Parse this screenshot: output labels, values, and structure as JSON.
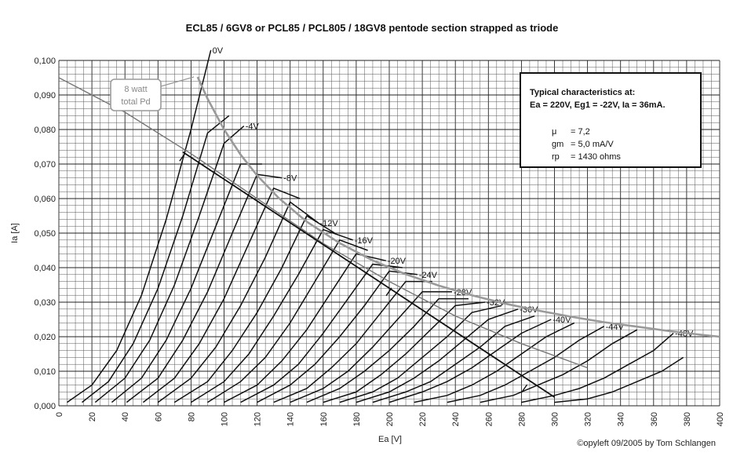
{
  "chart_data": {
    "type": "line",
    "title": "ECL85 / 6GV8 or PCL85 /  PCL805 / 18GV8 pentode section strapped as triode",
    "xlabel": "Ea [V]",
    "ylabel": "Ia [A]",
    "xlim": [
      0,
      400
    ],
    "ylim": [
      0,
      0.1
    ],
    "x_ticks": [
      "0",
      "20",
      "40",
      "60",
      "80",
      "100",
      "120",
      "140",
      "160",
      "180",
      "200",
      "220",
      "240",
      "260",
      "280",
      "300",
      "320",
      "340",
      "360",
      "380",
      "400"
    ],
    "y_ticks": [
      "0,000",
      "0,010",
      "0,020",
      "0,030",
      "0,040",
      "0,050",
      "0,060",
      "0,070",
      "0,080",
      "0,090",
      "0,100"
    ],
    "grid": true,
    "colors": {
      "curve": "#111111",
      "dissipation": "#9a9a9a",
      "load_line": "#111111",
      "grid": "#333333"
    },
    "curves": [
      {
        "label": "0V",
        "eg": 0,
        "points": [
          [
            5,
            0.001
          ],
          [
            20,
            0.006
          ],
          [
            35,
            0.016
          ],
          [
            50,
            0.032
          ],
          [
            65,
            0.054
          ],
          [
            80,
            0.08
          ],
          [
            92,
            0.103
          ]
        ]
      },
      {
        "label": "",
        "eg": -2,
        "points": [
          [
            14,
            0.001
          ],
          [
            30,
            0.007
          ],
          [
            45,
            0.018
          ],
          [
            60,
            0.034
          ],
          [
            75,
            0.055
          ],
          [
            90,
            0.079
          ],
          [
            103,
            0.084
          ]
        ]
      },
      {
        "label": "-4V",
        "eg": -4,
        "points": [
          [
            22,
            0.001
          ],
          [
            40,
            0.008
          ],
          [
            55,
            0.019
          ],
          [
            70,
            0.035
          ],
          [
            85,
            0.055
          ],
          [
            100,
            0.076
          ],
          [
            112,
            0.081
          ]
        ]
      },
      {
        "label": "",
        "eg": -6,
        "points": [
          [
            32,
            0.001
          ],
          [
            50,
            0.008
          ],
          [
            65,
            0.019
          ],
          [
            80,
            0.034
          ],
          [
            95,
            0.052
          ],
          [
            110,
            0.07
          ],
          [
            123,
            0.07
          ]
        ]
      },
      {
        "label": "-8V",
        "eg": -8,
        "points": [
          [
            41,
            0.001
          ],
          [
            60,
            0.008
          ],
          [
            75,
            0.019
          ],
          [
            90,
            0.033
          ],
          [
            105,
            0.05
          ],
          [
            120,
            0.067
          ],
          [
            135,
            0.066
          ]
        ]
      },
      {
        "label": "",
        "eg": -10,
        "points": [
          [
            51,
            0.001
          ],
          [
            70,
            0.008
          ],
          [
            85,
            0.018
          ],
          [
            100,
            0.031
          ],
          [
            115,
            0.047
          ],
          [
            130,
            0.063
          ],
          [
            146,
            0.06
          ]
        ]
      },
      {
        "label": "-12V",
        "eg": -12,
        "points": [
          [
            60,
            0.001
          ],
          [
            80,
            0.008
          ],
          [
            95,
            0.017
          ],
          [
            110,
            0.029
          ],
          [
            125,
            0.043
          ],
          [
            140,
            0.059
          ],
          [
            157,
            0.053
          ]
        ]
      },
      {
        "label": "",
        "eg": -14,
        "points": [
          [
            70,
            0.001
          ],
          [
            90,
            0.007
          ],
          [
            105,
            0.016
          ],
          [
            120,
            0.027
          ],
          [
            135,
            0.04
          ],
          [
            150,
            0.055
          ],
          [
            167,
            0.05
          ]
        ]
      },
      {
        "label": "-16V",
        "eg": -16,
        "points": [
          [
            80,
            0.001
          ],
          [
            100,
            0.007
          ],
          [
            115,
            0.015
          ],
          [
            130,
            0.026
          ],
          [
            145,
            0.038
          ],
          [
            160,
            0.051
          ],
          [
            178,
            0.048
          ]
        ]
      },
      {
        "label": "",
        "eg": -18,
        "points": [
          [
            90,
            0.001
          ],
          [
            110,
            0.007
          ],
          [
            125,
            0.014
          ],
          [
            140,
            0.024
          ],
          [
            155,
            0.036
          ],
          [
            170,
            0.048
          ],
          [
            187,
            0.045
          ]
        ]
      },
      {
        "label": "-20V",
        "eg": -20,
        "points": [
          [
            100,
            0.001
          ],
          [
            120,
            0.006
          ],
          [
            135,
            0.013
          ],
          [
            150,
            0.022
          ],
          [
            165,
            0.033
          ],
          [
            180,
            0.044
          ],
          [
            198,
            0.042
          ]
        ]
      },
      {
        "label": "",
        "eg": -22,
        "points": [
          [
            110,
            0.001
          ],
          [
            130,
            0.006
          ],
          [
            145,
            0.012
          ],
          [
            160,
            0.021
          ],
          [
            175,
            0.031
          ],
          [
            190,
            0.041
          ],
          [
            208,
            0.04
          ]
        ]
      },
      {
        "label": "-24V",
        "eg": -24,
        "points": [
          [
            120,
            0.001
          ],
          [
            140,
            0.006
          ],
          [
            155,
            0.012
          ],
          [
            170,
            0.02
          ],
          [
            185,
            0.029
          ],
          [
            200,
            0.039
          ],
          [
            217,
            0.038
          ]
        ]
      },
      {
        "label": "",
        "eg": -26,
        "points": [
          [
            130,
            0.001
          ],
          [
            150,
            0.005
          ],
          [
            165,
            0.011
          ],
          [
            180,
            0.018
          ],
          [
            195,
            0.027
          ],
          [
            210,
            0.036
          ],
          [
            226,
            0.036
          ]
        ]
      },
      {
        "label": "-28V",
        "eg": -28,
        "points": [
          [
            140,
            0.001
          ],
          [
            160,
            0.005
          ],
          [
            175,
            0.01
          ],
          [
            190,
            0.017
          ],
          [
            205,
            0.025
          ],
          [
            220,
            0.033
          ],
          [
            238,
            0.033
          ]
        ]
      },
      {
        "label": "",
        "eg": -30,
        "points": [
          [
            150,
            0.001
          ],
          [
            170,
            0.005
          ],
          [
            185,
            0.01
          ],
          [
            200,
            0.016
          ],
          [
            215,
            0.023
          ],
          [
            230,
            0.031
          ],
          [
            248,
            0.031
          ]
        ]
      },
      {
        "label": "-32V",
        "eg": -32,
        "points": [
          [
            160,
            0.001
          ],
          [
            180,
            0.004
          ],
          [
            195,
            0.009
          ],
          [
            210,
            0.015
          ],
          [
            225,
            0.022
          ],
          [
            240,
            0.029
          ],
          [
            258,
            0.03
          ]
        ]
      },
      {
        "label": "",
        "eg": -34,
        "points": [
          [
            170,
            0.001
          ],
          [
            190,
            0.004
          ],
          [
            205,
            0.008
          ],
          [
            220,
            0.014
          ],
          [
            235,
            0.02
          ],
          [
            250,
            0.027
          ],
          [
            268,
            0.029
          ]
        ]
      },
      {
        "label": "-36V",
        "eg": -36,
        "points": [
          [
            180,
            0.001
          ],
          [
            200,
            0.004
          ],
          [
            215,
            0.008
          ],
          [
            230,
            0.013
          ],
          [
            245,
            0.019
          ],
          [
            260,
            0.025
          ],
          [
            278,
            0.028
          ]
        ]
      },
      {
        "label": "",
        "eg": -38,
        "points": [
          [
            190,
            0.001
          ],
          [
            210,
            0.004
          ],
          [
            225,
            0.007
          ],
          [
            240,
            0.012
          ],
          [
            255,
            0.017
          ],
          [
            270,
            0.023
          ],
          [
            288,
            0.026
          ]
        ]
      },
      {
        "label": "-40V",
        "eg": -40,
        "points": [
          [
            200,
            0.001
          ],
          [
            220,
            0.004
          ],
          [
            235,
            0.007
          ],
          [
            250,
            0.011
          ],
          [
            265,
            0.016
          ],
          [
            280,
            0.021
          ],
          [
            298,
            0.025
          ]
        ]
      },
      {
        "label": "",
        "eg": -42,
        "points": [
          [
            215,
            0.001
          ],
          [
            235,
            0.003
          ],
          [
            250,
            0.006
          ],
          [
            265,
            0.01
          ],
          [
            280,
            0.015
          ],
          [
            295,
            0.02
          ],
          [
            312,
            0.024
          ]
        ]
      },
      {
        "label": "-44V",
        "eg": -44,
        "points": [
          [
            235,
            0.001
          ],
          [
            255,
            0.003
          ],
          [
            270,
            0.006
          ],
          [
            285,
            0.01
          ],
          [
            300,
            0.014
          ],
          [
            315,
            0.019
          ],
          [
            330,
            0.023
          ]
        ]
      },
      {
        "label": "",
        "eg": -46,
        "points": [
          [
            255,
            0.001
          ],
          [
            275,
            0.003
          ],
          [
            290,
            0.006
          ],
          [
            305,
            0.009
          ],
          [
            320,
            0.013
          ],
          [
            335,
            0.018
          ],
          [
            350,
            0.022
          ]
        ]
      },
      {
        "label": "-48V",
        "eg": -48,
        "points": [
          [
            280,
            0.001
          ],
          [
            300,
            0.003
          ],
          [
            315,
            0.005
          ],
          [
            330,
            0.008
          ],
          [
            345,
            0.012
          ],
          [
            360,
            0.016
          ],
          [
            372,
            0.021
          ]
        ]
      },
      {
        "label": "",
        "eg": -50,
        "points": [
          [
            300,
            0.001
          ],
          [
            320,
            0.002
          ],
          [
            335,
            0.004
          ],
          [
            350,
            0.007
          ],
          [
            365,
            0.01
          ],
          [
            378,
            0.014
          ]
        ]
      }
    ],
    "dissipation_curve": {
      "watts": 8,
      "points": [
        [
          84,
          0.0952
        ],
        [
          90,
          0.0889
        ],
        [
          100,
          0.08
        ],
        [
          110,
          0.0727
        ],
        [
          120,
          0.0667
        ],
        [
          133,
          0.0602
        ],
        [
          150,
          0.0533
        ],
        [
          170,
          0.0471
        ],
        [
          190,
          0.0421
        ],
        [
          210,
          0.0381
        ],
        [
          230,
          0.0348
        ],
        [
          250,
          0.032
        ],
        [
          270,
          0.0296
        ],
        [
          290,
          0.0276
        ],
        [
          310,
          0.0258
        ],
        [
          330,
          0.0242
        ],
        [
          350,
          0.0229
        ],
        [
          370,
          0.0216
        ],
        [
          390,
          0.0205
        ],
        [
          400,
          0.02
        ]
      ]
    },
    "load_line": {
      "points": [
        [
          75,
          0.0735
        ],
        [
          300,
          0.0025
        ]
      ],
      "ticks": [
        [
          75,
          0.072
        ],
        [
          200,
          0.033
        ],
        [
          282,
          0.005
        ]
      ]
    },
    "secondary_line": {
      "points": [
        [
          0,
          0.095
        ],
        [
          40,
          0.085
        ],
        [
          80,
          0.073
        ],
        [
          120,
          0.06
        ],
        [
          160,
          0.047
        ],
        [
          200,
          0.036
        ],
        [
          240,
          0.026
        ],
        [
          280,
          0.018
        ],
        [
          320,
          0.011
        ]
      ]
    },
    "pd_label": {
      "line1": "8 watt",
      "line2": "total Pd"
    },
    "info_box": {
      "heading1": "Typical characteristics at:",
      "heading2": "Ea = 220V, Eg1 = -22V, Ia = 36mA.",
      "param_names": [
        "μ",
        "gm",
        "rp"
      ],
      "param_values": [
        "= 7,2",
        "= 5,0 mA/V",
        "= 1430 ohms"
      ]
    },
    "copyright": "©opyleft 09/2005 by Tom Schlangen"
  }
}
